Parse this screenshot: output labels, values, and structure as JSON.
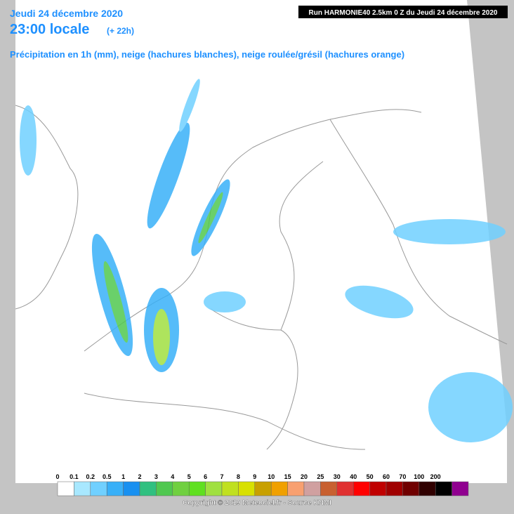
{
  "header": {
    "date": "Jeudi 24 décembre 2020",
    "time": "23:00 locale",
    "offset": "(+ 22h)",
    "subtitle": "Précipitation en 1h (mm), neige (hachures blanches), neige roulée/grésil (hachures orange)",
    "run": "Run HARMONIE40 2.5km 0 Z du Jeudi 24 décembre 2020"
  },
  "legend": {
    "labels": [
      "0",
      "0.1",
      "0.2",
      "0.5",
      "1",
      "2",
      "3",
      "4",
      "5",
      "6",
      "7",
      "8",
      "9",
      "10",
      "15",
      "20",
      "25",
      "30",
      "40",
      "50",
      "60",
      "70",
      "100",
      "200"
    ]
  },
  "footer": {
    "copyright": "Copyright © 2019 Meteociel.fr - Source KNMI"
  }
}
